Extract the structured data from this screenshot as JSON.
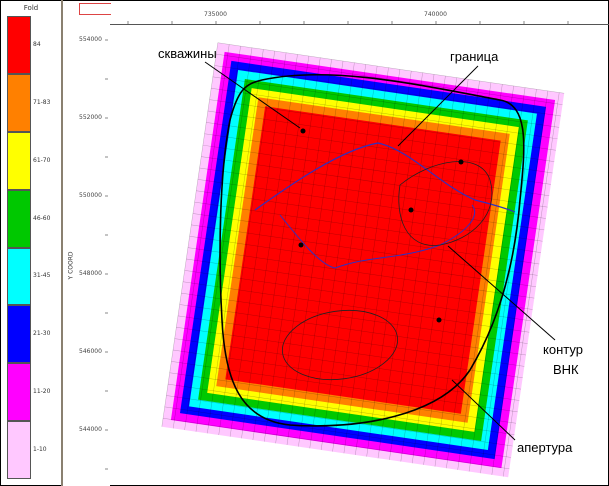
{
  "legend": {
    "title": "Fold",
    "items": [
      {
        "label": "84",
        "color": "#ff0000"
      },
      {
        "label": "71-83",
        "color": "#ff8000"
      },
      {
        "label": "61-70",
        "color": "#ffff00"
      },
      {
        "label": "46-60",
        "color": "#00c800"
      },
      {
        "label": "31-45",
        "color": "#00ffff"
      },
      {
        "label": "21-30",
        "color": "#0000ff"
      },
      {
        "label": "11-20",
        "color": "#ff00ff"
      },
      {
        "label": "1-10",
        "color": "#ffc8ff"
      }
    ]
  },
  "axes": {
    "ylabel": "Y COORD",
    "x_ticks": [
      "735000",
      "740000"
    ],
    "y_ticks": [
      "554000",
      "552000",
      "550000",
      "548000",
      "546000",
      "544000"
    ]
  },
  "annotations": {
    "wells": "скважины",
    "boundary": "граница",
    "owc_line1": "контур",
    "owc_line2": "ВНК",
    "aperture": "апертура"
  }
}
